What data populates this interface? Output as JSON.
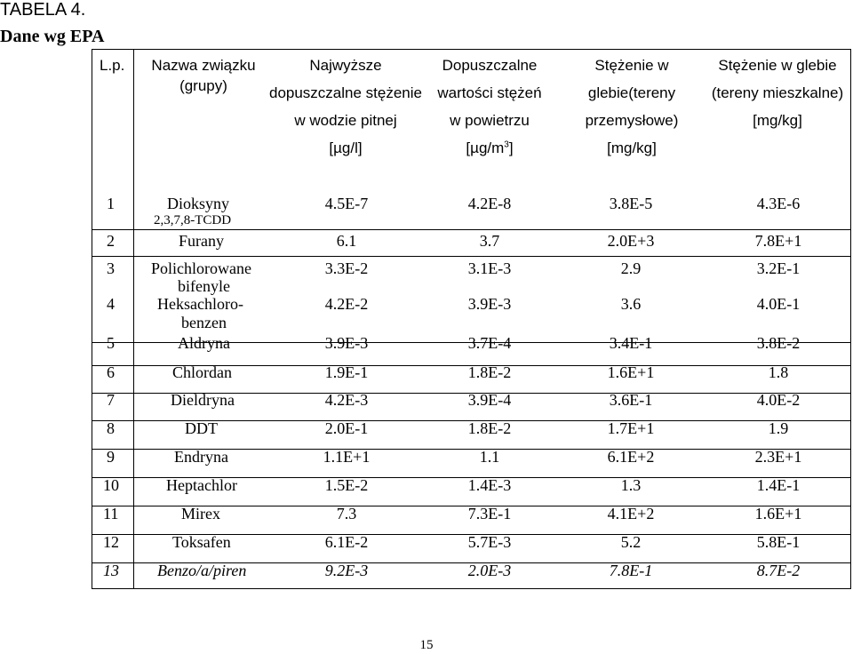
{
  "title": "TABELA 4.",
  "subtitle": "Dane wg EPA",
  "headers": {
    "lp": "L.p.",
    "name_1": "Nazwa związku",
    "name_2": "(grupy)",
    "col1_1": "Najwyższe",
    "col1_2": "dopuszczalne stężenie",
    "col1_3": "w wodzie pitnej",
    "col1_4": "[µg/l]",
    "col2_1": "Dopuszczalne",
    "col2_2": "wartości stężeń",
    "col2_3": "w powietrzu",
    "col2_4": "[µg/m",
    "col2_sup": "3",
    "col2_close": "]",
    "col3_1": "Stężenie w",
    "col3_2": "glebie(tereny",
    "col3_3": "przemysłowe)",
    "col3_4": "[mg/kg]",
    "col4_1": "Stężenie w glebie",
    "col4_2": "(tereny mieszkalne)",
    "col4_3": "[mg/kg]"
  },
  "rows": [
    {
      "n": "1",
      "name": "Dioksyny",
      "name2": "2,3,7,8-TCDD",
      "v1": "4.5E-7",
      "v2": "4.2E-8",
      "v3": "3.8E-5",
      "v4": "4.3E-6"
    },
    {
      "n": "2",
      "name": "Furany",
      "v1": "6.1",
      "v2": "3.7",
      "v3": "2.0E+3",
      "v4": "7.8E+1"
    },
    {
      "n": "3",
      "name": "Polichlorowane",
      "name2": "bifenyle",
      "v1": "3.3E-2",
      "v2": "3.1E-3",
      "v3": "2.9",
      "v4": "3.2E-1"
    },
    {
      "n": "4",
      "name": "Heksachloro-",
      "name2": "benzen",
      "v1": "4.2E-2",
      "v2": "3.9E-3",
      "v3": "3.6",
      "v4": "4.0E-1"
    },
    {
      "n": "5",
      "name": "Aldryna",
      "v1": "3.9E-3",
      "v2": "3.7E-4",
      "v3": "3.4E-1",
      "v4": "3.8E-2"
    },
    {
      "n": "6",
      "name": "Chlordan",
      "v1": "1.9E-1",
      "v2": "1.8E-2",
      "v3": "1.6E+1",
      "v4": "1.8"
    },
    {
      "n": "7",
      "name": "Dieldryna",
      "v1": "4.2E-3",
      "v2": "3.9E-4",
      "v3": "3.6E-1",
      "v4": "4.0E-2"
    },
    {
      "n": "8",
      "name": "DDT",
      "v1": "2.0E-1",
      "v2": "1.8E-2",
      "v3": "1.7E+1",
      "v4": "1.9"
    },
    {
      "n": "9",
      "name": "Endryna",
      "v1": "1.1E+1",
      "v2": "1.1",
      "v3": "6.1E+2",
      "v4": "2.3E+1"
    },
    {
      "n": "10",
      "name": "Heptachlor",
      "v1": "1.5E-2",
      "v2": "1.4E-3",
      "v3": "1.3",
      "v4": "1.4E-1"
    },
    {
      "n": "11",
      "name": "Mirex",
      "v1": "7.3",
      "v2": "7.3E-1",
      "v3": "4.1E+2",
      "v4": "1.6E+1"
    },
    {
      "n": "12",
      "name": "Toksafen",
      "v1": "6.1E-2",
      "v2": "5.7E-3",
      "v3": "5.2",
      "v4": "5.8E-1"
    },
    {
      "n": "13",
      "name": "Benzo/a/piren",
      "v1": "9.2E-3",
      "v2": "2.0E-3",
      "v3": "7.8E-1",
      "v4": "8.7E-2"
    }
  ],
  "page_number": "15"
}
